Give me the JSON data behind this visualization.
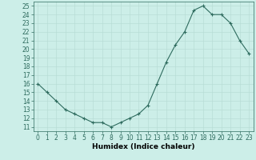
{
  "x": [
    0,
    1,
    2,
    3,
    4,
    5,
    6,
    7,
    8,
    9,
    10,
    11,
    12,
    13,
    14,
    15,
    16,
    17,
    18,
    19,
    20,
    21,
    22,
    23
  ],
  "y": [
    16,
    15,
    14,
    13,
    12.5,
    12,
    11.5,
    11.5,
    11,
    11.5,
    12,
    12.5,
    13.5,
    16,
    18.5,
    20.5,
    22,
    24.5,
    25,
    24,
    24,
    23,
    21,
    19.5
  ],
  "line_color": "#2e6b5e",
  "marker": "+",
  "marker_size": 3,
  "linewidth": 0.8,
  "xlabel": "Humidex (Indice chaleur)",
  "xlabel_fontsize": 6.5,
  "xlim": [
    -0.5,
    23.5
  ],
  "ylim": [
    10.5,
    25.5
  ],
  "yticks": [
    11,
    12,
    13,
    14,
    15,
    16,
    17,
    18,
    19,
    20,
    21,
    22,
    23,
    24,
    25
  ],
  "xticks": [
    0,
    1,
    2,
    3,
    4,
    5,
    6,
    7,
    8,
    9,
    10,
    11,
    12,
    13,
    14,
    15,
    16,
    17,
    18,
    19,
    20,
    21,
    22,
    23
  ],
  "grid_color": "#b8ddd6",
  "background_color": "#cceee8",
  "tick_fontsize": 5.5,
  "tick_color": "#2e6b5e"
}
